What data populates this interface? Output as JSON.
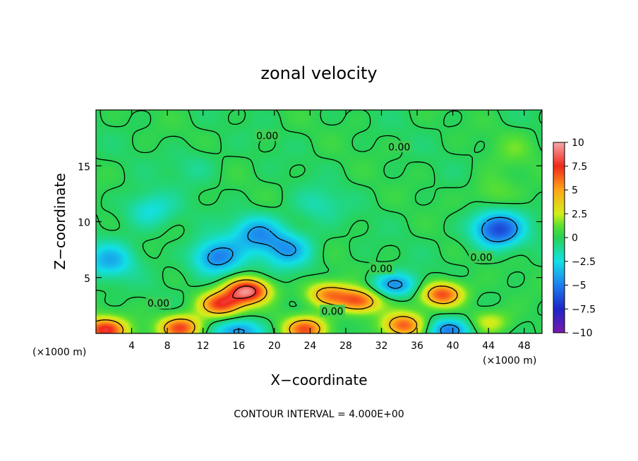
{
  "chart_data": {
    "type": "heatmap",
    "title": "zonal velocity",
    "xlabel": "X−coordinate",
    "ylabel": "Z−coordinate",
    "x_unit_left": "(×1000 m)",
    "x_unit_right": "(×1000 m)",
    "footer": "CONTOUR INTERVAL = 4.000E+00",
    "xlim": [
      0,
      50
    ],
    "ylim": [
      0,
      20
    ],
    "x_ticks": [
      4,
      8,
      12,
      16,
      20,
      24,
      28,
      32,
      36,
      40,
      44,
      48
    ],
    "y_ticks": [
      5,
      10,
      15
    ],
    "colorbar": {
      "range": [
        -10,
        10
      ],
      "ticks": [
        10,
        7.5,
        5,
        2.5,
        0,
        -2.5,
        -5,
        -7.5,
        -10
      ],
      "tick_labels": [
        "10",
        "7.5",
        "5",
        "2.5",
        "0",
        "−2.5",
        "−5",
        "−7.5",
        "−10"
      ]
    },
    "contour_labels": [
      {
        "text": "0.00",
        "x": 19.2,
        "y": 17.7
      },
      {
        "text": "0.00",
        "x": 34.0,
        "y": 16.7
      },
      {
        "text": "0.00",
        "x": 43.2,
        "y": 6.8
      },
      {
        "text": "0.00",
        "x": 32.0,
        "y": 5.8
      },
      {
        "text": "0.00",
        "x": 26.5,
        "y": 2.0
      },
      {
        "text": "0.00",
        "x": 7.0,
        "y": 2.7
      }
    ],
    "features": [
      {
        "kind": "max",
        "x": 17.0,
        "y": 3.8,
        "value": 9.0
      },
      {
        "kind": "max",
        "x": 14.0,
        "y": 2.6,
        "value": 7.0
      },
      {
        "kind": "max",
        "x": 38.8,
        "y": 3.5,
        "value": 7.0
      },
      {
        "kind": "max",
        "x": 29.5,
        "y": 2.9,
        "value": 6.5
      },
      {
        "kind": "max",
        "x": 26.0,
        "y": 3.5,
        "value": 5.5
      },
      {
        "kind": "max",
        "x": 1.0,
        "y": 0.3,
        "value": 7.5
      },
      {
        "kind": "max",
        "x": 9.5,
        "y": 0.5,
        "value": 7.0
      },
      {
        "kind": "max",
        "x": 23.5,
        "y": 0.4,
        "value": 6.5
      },
      {
        "kind": "max",
        "x": 34.5,
        "y": 0.7,
        "value": 6.5
      },
      {
        "kind": "max",
        "x": 44.0,
        "y": 1.0,
        "value": 3.0
      },
      {
        "kind": "max",
        "x": 44.5,
        "y": 12.5,
        "value": 1.5
      },
      {
        "kind": "max",
        "x": 47.0,
        "y": 16.5,
        "value": 1.0
      },
      {
        "kind": "min",
        "x": 45.0,
        "y": 9.3,
        "value": -6.5
      },
      {
        "kind": "min",
        "x": 18.0,
        "y": 9.0,
        "value": -4.0
      },
      {
        "kind": "min",
        "x": 13.5,
        "y": 6.8,
        "value": -5.0
      },
      {
        "kind": "min",
        "x": 21.5,
        "y": 7.5,
        "value": -4.0
      },
      {
        "kind": "min",
        "x": 33.5,
        "y": 4.3,
        "value": -4.5
      },
      {
        "kind": "min",
        "x": 1.5,
        "y": 6.5,
        "value": -3.5
      },
      {
        "kind": "min",
        "x": 16.0,
        "y": 0.2,
        "value": -4.5
      },
      {
        "kind": "min",
        "x": 39.5,
        "y": 0.3,
        "value": -5.0
      },
      {
        "kind": "min",
        "x": 6.0,
        "y": 11.0,
        "value": -2.5
      },
      {
        "kind": "min",
        "x": 25.0,
        "y": 11.5,
        "value": -1.5
      },
      {
        "kind": "min",
        "x": 11.0,
        "y": 15.0,
        "value": -1.0
      }
    ]
  }
}
